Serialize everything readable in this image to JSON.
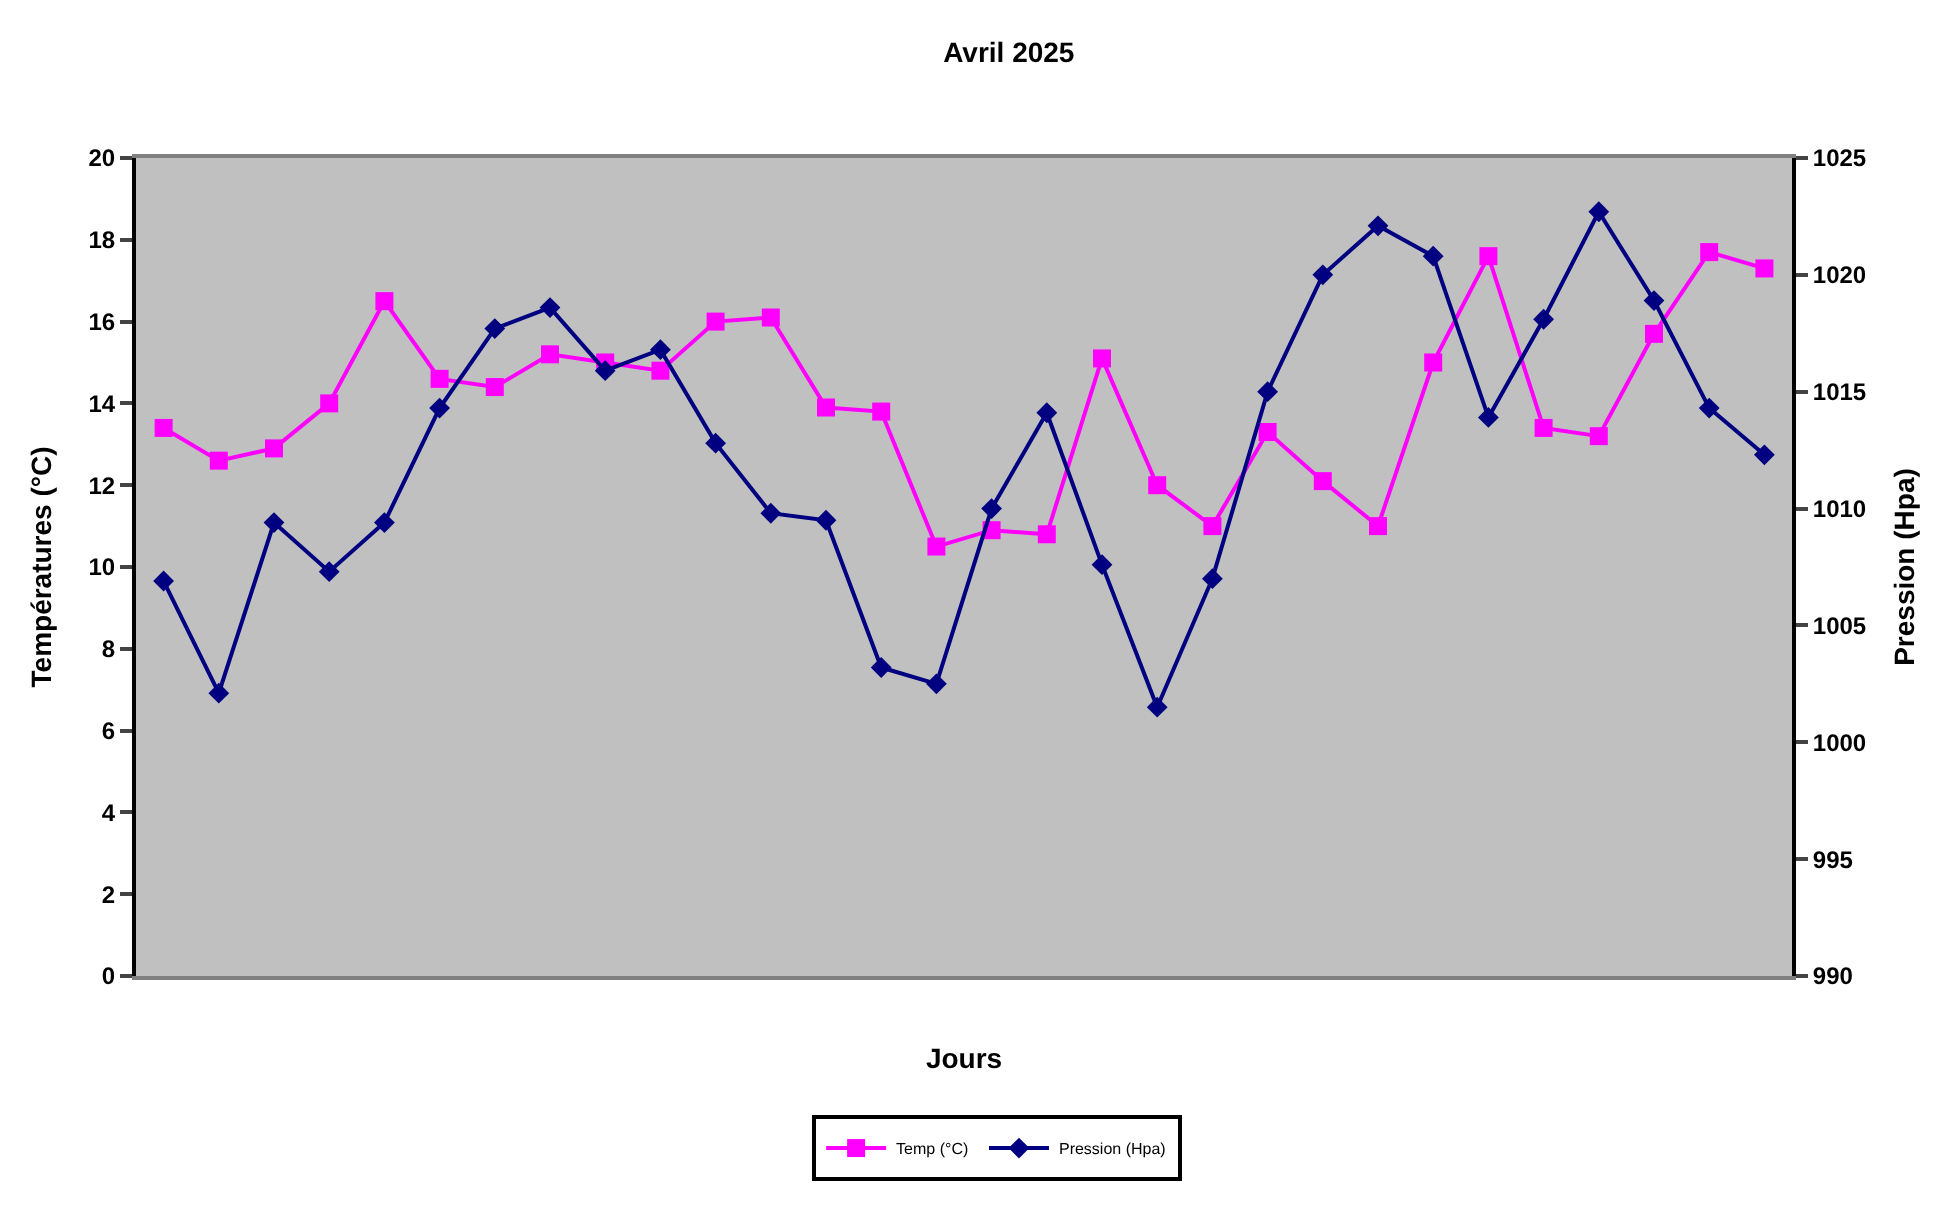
{
  "chart_data": {
    "type": "line",
    "title": "Avril 2025",
    "xlabel": "Jours",
    "ylabel": "Températures (°C)",
    "y2label": "Pression (Hpa)",
    "categories": [
      null,
      null,
      null,
      null,
      null,
      null,
      null,
      null,
      null,
      null,
      null,
      null,
      null,
      null,
      null,
      null,
      null,
      null,
      null,
      null,
      null,
      null,
      null,
      null,
      null,
      null,
      null,
      null,
      null,
      null
    ],
    "series": [
      {
        "name": "Temp (°C)",
        "color": "#ff00ff",
        "marker": "square",
        "values": [
          13.4,
          12.6,
          12.9,
          14.0,
          16.5,
          14.6,
          14.4,
          15.2,
          15.0,
          14.8,
          16.0,
          16.1,
          13.9,
          13.8,
          10.5,
          10.9,
          10.8,
          15.1,
          12.0,
          11.0,
          13.3,
          12.1,
          11.0,
          15.0,
          17.6,
          13.4,
          13.2,
          15.7,
          17.7,
          17.3
        ]
      },
      {
        "name": "Pression (Hpa)",
        "color": "#000080",
        "marker": "diamond",
        "axis": "y2",
        "values": [
          1006.9,
          1002.1,
          1009.4,
          1007.3,
          1009.4,
          1014.3,
          1017.7,
          1018.6,
          1015.9,
          1016.8,
          1012.8,
          1009.8,
          1009.5,
          1003.2,
          1002.5,
          1010.0,
          1014.1,
          1007.6,
          1001.5,
          1007.0,
          1015.0,
          1020.0,
          1022.1,
          1020.8,
          1013.9,
          1018.1,
          1022.7,
          1018.9,
          1014.3,
          1012.3
        ]
      }
    ],
    "ylim": [
      0,
      20
    ],
    "yticks": [
      0,
      2,
      4,
      6,
      8,
      10,
      12,
      14,
      16,
      18,
      20
    ],
    "y2lim": [
      990,
      1025
    ],
    "y2ticks": [
      990,
      995,
      1000,
      1005,
      1010,
      1015,
      1020,
      1025
    ],
    "grid": false,
    "legend": "bottom",
    "tick_labels": "y"
  }
}
